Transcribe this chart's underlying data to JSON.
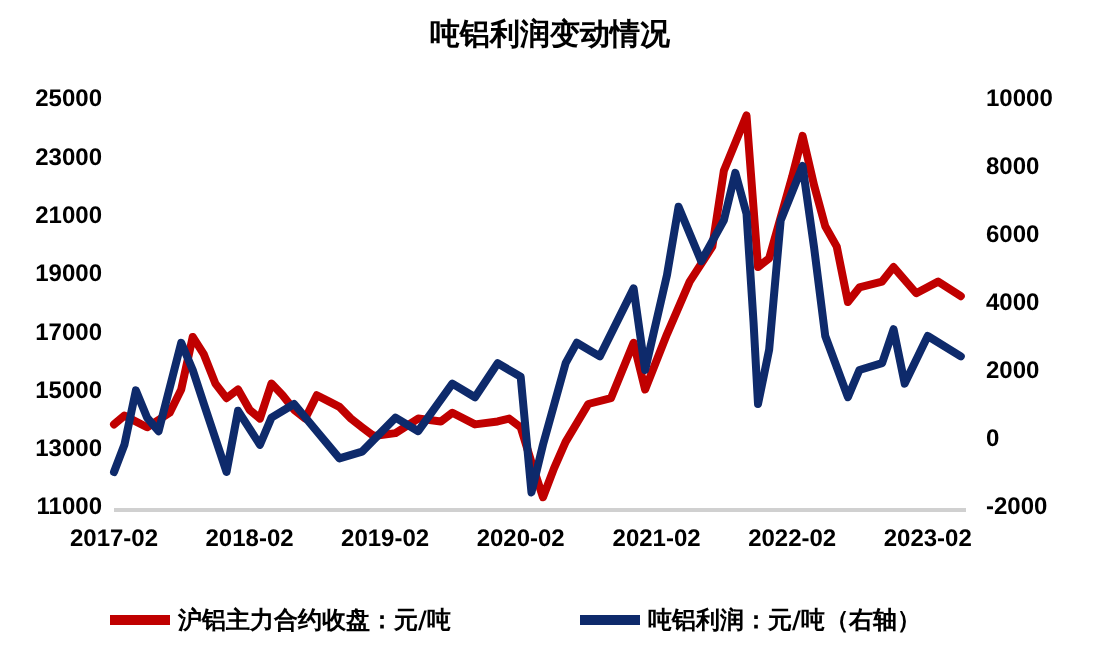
{
  "chart_data": {
    "type": "line",
    "title": "吨铝利润变动情况",
    "xlim": [
      "2017-02-01",
      "2023-05-15"
    ],
    "xticks": [
      {
        "value": "2017-02",
        "label": "2017-02"
      },
      {
        "value": "2018-02",
        "label": "2018-02"
      },
      {
        "value": "2019-02",
        "label": "2019-02"
      },
      {
        "value": "2020-02",
        "label": "2020-02"
      },
      {
        "value": "2021-02",
        "label": "2021-02"
      },
      {
        "value": "2022-02",
        "label": "2022-02"
      },
      {
        "value": "2023-02",
        "label": "2023-02"
      }
    ],
    "ylim": [
      11000,
      25000
    ],
    "yticks": [
      11000,
      13000,
      15000,
      17000,
      19000,
      21000,
      23000,
      25000
    ],
    "y2lim": [
      -2000,
      10000
    ],
    "y2ticks": [
      -2000,
      0,
      2000,
      4000,
      6000,
      8000,
      10000
    ],
    "legend": "bottom",
    "grid": false,
    "series": [
      {
        "name": "沪铝主力合约收盘：元/吨",
        "color": "#c00000",
        "x": [
          "2017-02",
          "2017-03",
          "2017-05",
          "2017-07",
          "2017-08",
          "2017-09",
          "2017-10",
          "2017-11",
          "2017-12",
          "2018-01",
          "2018-02",
          "2018-03",
          "2018-04",
          "2018-05",
          "2018-06",
          "2018-07",
          "2018-08",
          "2018-09",
          "2018-10",
          "2018-11",
          "2018-12",
          "2019-01",
          "2019-03",
          "2019-05",
          "2019-07",
          "2019-08",
          "2019-10",
          "2019-12",
          "2020-01",
          "2020-02",
          "2020-03",
          "2020-04",
          "2020-05",
          "2020-06",
          "2020-08",
          "2020-10",
          "2020-12",
          "2021-01",
          "2021-03",
          "2021-05",
          "2021-07",
          "2021-08",
          "2021-10",
          "2021-11",
          "2021-12",
          "2022-02",
          "2022-03",
          "2022-04",
          "2022-05",
          "2022-06",
          "2022-07",
          "2022-08",
          "2022-10",
          "2022-11",
          "2023-01",
          "2023-03",
          "2023-05"
        ],
        "values": [
          13800,
          14100,
          13700,
          14200,
          15000,
          16800,
          16200,
          15200,
          14700,
          15000,
          14300,
          14000,
          15200,
          14800,
          14300,
          14000,
          14800,
          14600,
          14400,
          14000,
          13700,
          13400,
          13500,
          14000,
          13900,
          14200,
          13800,
          13900,
          14000,
          13700,
          12500,
          11300,
          12300,
          13200,
          14500,
          14700,
          16600,
          15000,
          16900,
          18700,
          19900,
          22500,
          24400,
          19200,
          19500,
          22300,
          23700,
          22000,
          20600,
          19900,
          18000,
          18500,
          18700,
          19200,
          18300,
          18700,
          18200
        ]
      },
      {
        "name": "吨铝利润：元/吨（右轴）",
        "color": "#0e2a6b",
        "axis": "y2",
        "x": [
          "2017-02",
          "2017-03",
          "2017-04",
          "2017-05",
          "2017-06",
          "2017-08",
          "2017-09",
          "2017-10",
          "2017-12",
          "2018-01",
          "2018-03",
          "2018-04",
          "2018-06",
          "2018-08",
          "2018-10",
          "2018-12",
          "2019-03",
          "2019-05",
          "2019-08",
          "2019-10",
          "2019-12",
          "2020-02",
          "2020-03",
          "2020-04",
          "2020-06",
          "2020-07",
          "2020-09",
          "2020-12",
          "2021-01",
          "2021-03",
          "2021-04",
          "2021-06",
          "2021-08",
          "2021-09",
          "2021-10",
          "2021-10-20",
          "2021-11",
          "2021-12",
          "2022-01",
          "2022-03",
          "2022-04",
          "2022-05",
          "2022-07",
          "2022-08",
          "2022-10",
          "2022-11",
          "2022-12",
          "2023-02",
          "2023-05"
        ],
        "values": [
          -1000,
          -200,
          1400,
          600,
          200,
          2800,
          2000,
          1000,
          -1000,
          800,
          -200,
          600,
          1000,
          200,
          -600,
          -400,
          600,
          200,
          1600,
          1200,
          2200,
          1800,
          -1600,
          -200,
          2200,
          2800,
          2400,
          4400,
          2000,
          4800,
          6800,
          5200,
          6400,
          7800,
          6600,
          3400,
          1000,
          2600,
          6400,
          8000,
          5600,
          3000,
          1200,
          2000,
          2200,
          3200,
          1600,
          3000,
          2400
        ]
      }
    ]
  }
}
